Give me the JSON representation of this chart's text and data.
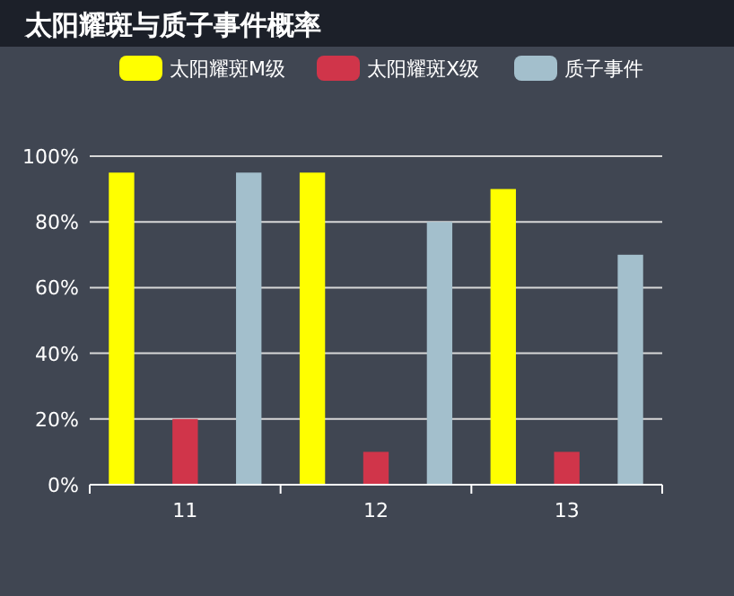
{
  "chart_data": {
    "type": "bar",
    "title": "太阳耀斑与质子事件概率",
    "categories": [
      "11",
      "12",
      "13"
    ],
    "series": [
      {
        "name": "太阳耀斑M级",
        "color": "#ffff00",
        "values": [
          95,
          95,
          90
        ]
      },
      {
        "name": "太阳耀斑X级",
        "color": "#d0354a",
        "values": [
          20,
          10,
          10
        ]
      },
      {
        "name": "质子事件",
        "color": "#a3bfcc",
        "values": [
          95,
          80,
          70
        ]
      }
    ],
    "ylim": [
      0,
      100
    ],
    "yticks": [
      {
        "value": 0,
        "label": "0%"
      },
      {
        "value": 20,
        "label": "20%"
      },
      {
        "value": 40,
        "label": "40%"
      },
      {
        "value": 60,
        "label": "60%"
      },
      {
        "value": 80,
        "label": "80%"
      },
      {
        "value": 100,
        "label": "100%"
      }
    ],
    "grid": "y",
    "legend": "top"
  }
}
